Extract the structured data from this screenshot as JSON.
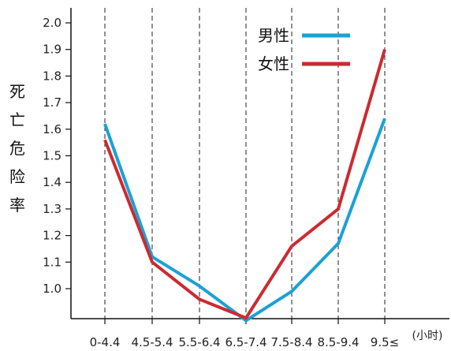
{
  "chart_data": {
    "type": "line",
    "title": "",
    "xlabel": "",
    "x_unit": "(小时)",
    "ylabel": "死亡危险率",
    "categories": [
      "0-4.4",
      "4.5-5.4",
      "5.5-6.4",
      "6.5-7.4",
      "7.5-8.4",
      "8.5-9.4",
      "9.5≤"
    ],
    "series": [
      {
        "name": "男性",
        "color": "#1ba1d6",
        "values": [
          1.62,
          1.12,
          1.01,
          0.88,
          0.99,
          1.17,
          1.64
        ]
      },
      {
        "name": "女性",
        "color": "#cc2a31",
        "values": [
          1.56,
          1.1,
          0.96,
          0.89,
          1.16,
          1.3,
          1.9
        ]
      }
    ],
    "yticks": [
      "1.0",
      "1.1",
      "1.2",
      "1.3",
      "1.4",
      "1.5",
      "1.6",
      "1.7",
      "1.8",
      "1.9",
      "2.0"
    ],
    "ylim": [
      0.88,
      2.05
    ],
    "grid": "vertical dashed lines at each category",
    "legend_position": "top-right"
  }
}
